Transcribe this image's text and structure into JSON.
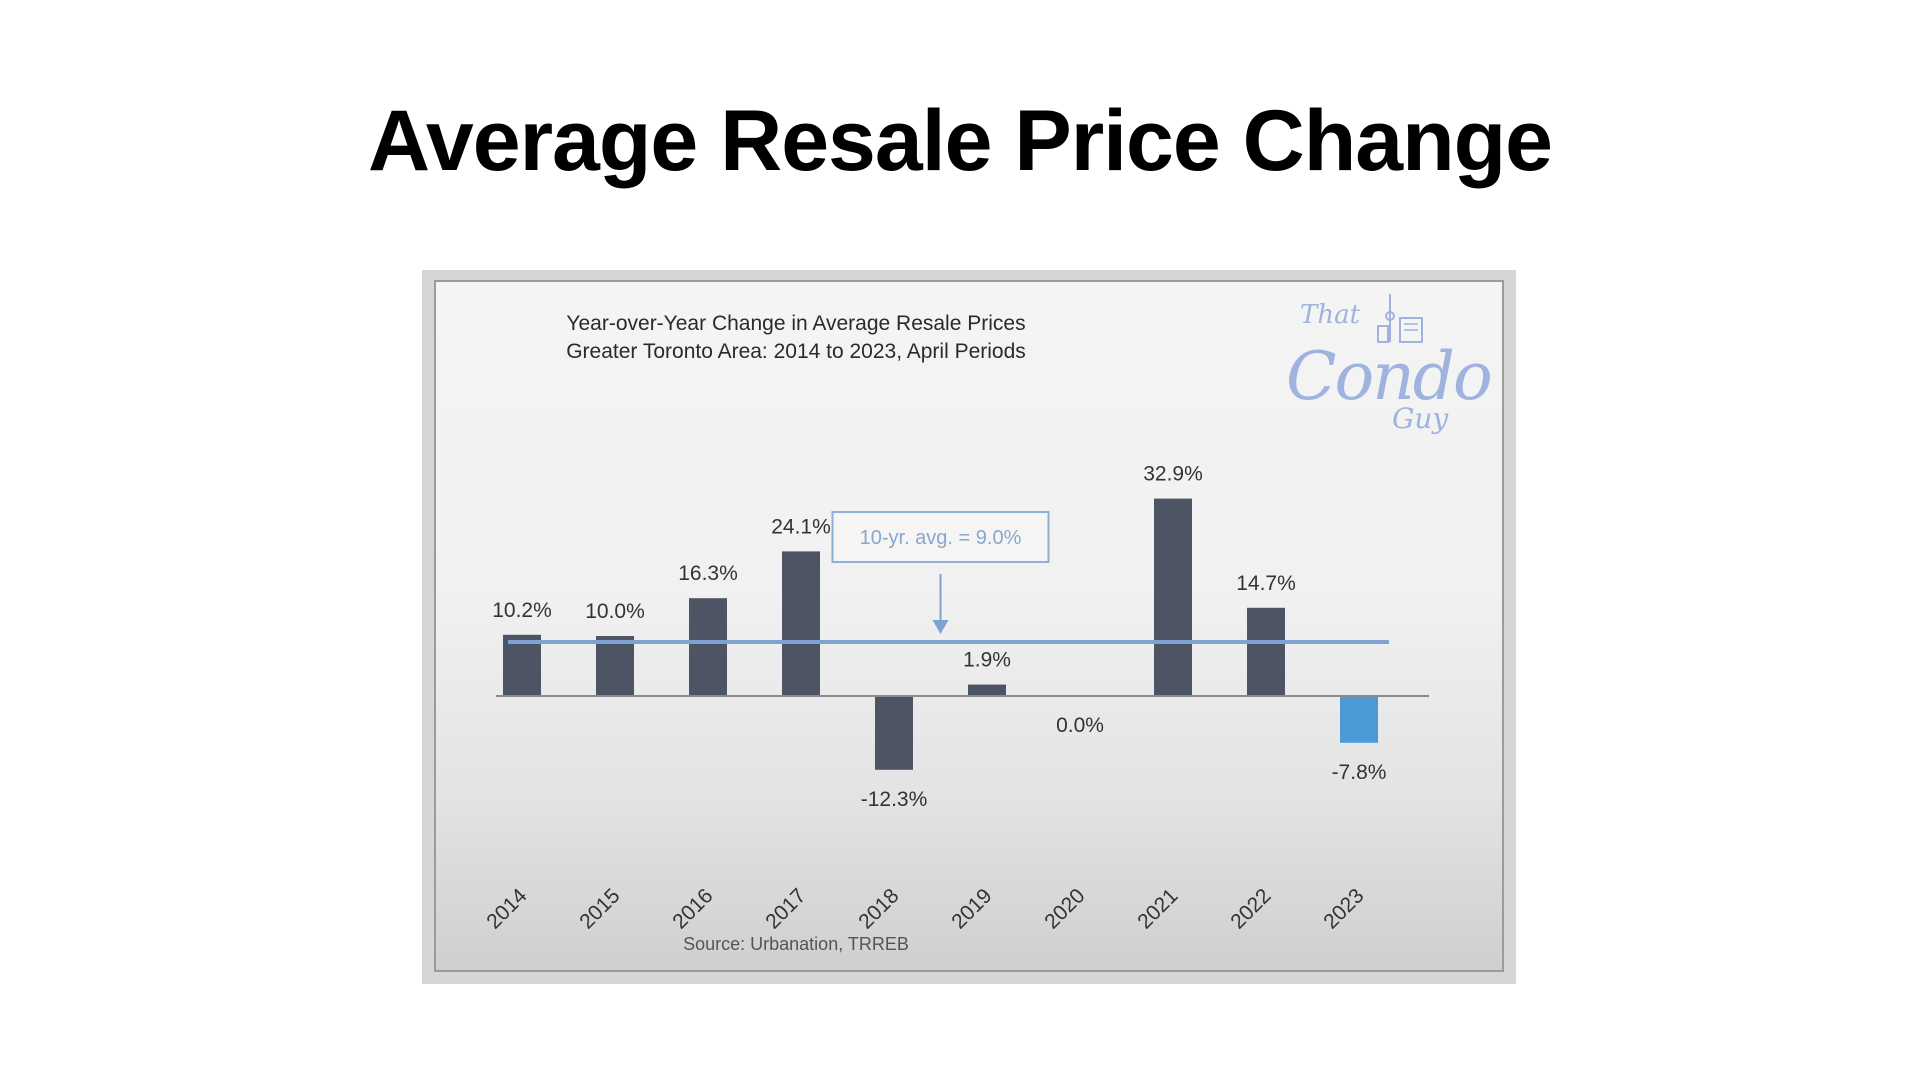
{
  "slide": {
    "title": "Average Resale Price Change"
  },
  "logo": {
    "line1": "That",
    "line2": "Condo",
    "line3": "Guy"
  },
  "colors": {
    "bar": "#4d5463",
    "bar_negative_highlight": "#4a9ad6",
    "avg_line": "#7fa3d0",
    "callout_border": "#8fb0d6",
    "callout_text": "#8aa6cf"
  },
  "chart_data": {
    "type": "bar",
    "title": "Year-over-Year Change in Average Resale Prices",
    "subtitle": "Greater Toronto Area: 2014 to 2023, April Periods",
    "categories": [
      "2014",
      "2015",
      "2016",
      "2017",
      "2018",
      "2019",
      "2020",
      "2021",
      "2022",
      "2023"
    ],
    "values": [
      10.2,
      10.0,
      16.3,
      24.1,
      -12.3,
      1.9,
      0.0,
      32.9,
      14.7,
      -7.8
    ],
    "data_labels": [
      "10.2%",
      "10.0%",
      "16.3%",
      "24.1%",
      "-12.3%",
      "1.9%",
      "0.0%",
      "32.9%",
      "14.7%",
      "-7.8%"
    ],
    "highlight_category": "2023",
    "reference_line": {
      "value": 9.0,
      "label": "10-yr. avg. = 9.0%"
    },
    "ylim": [
      -18,
      38
    ],
    "xlabel": "",
    "ylabel": "",
    "grid": false,
    "source": "Source: Urbanation, TRREB"
  }
}
